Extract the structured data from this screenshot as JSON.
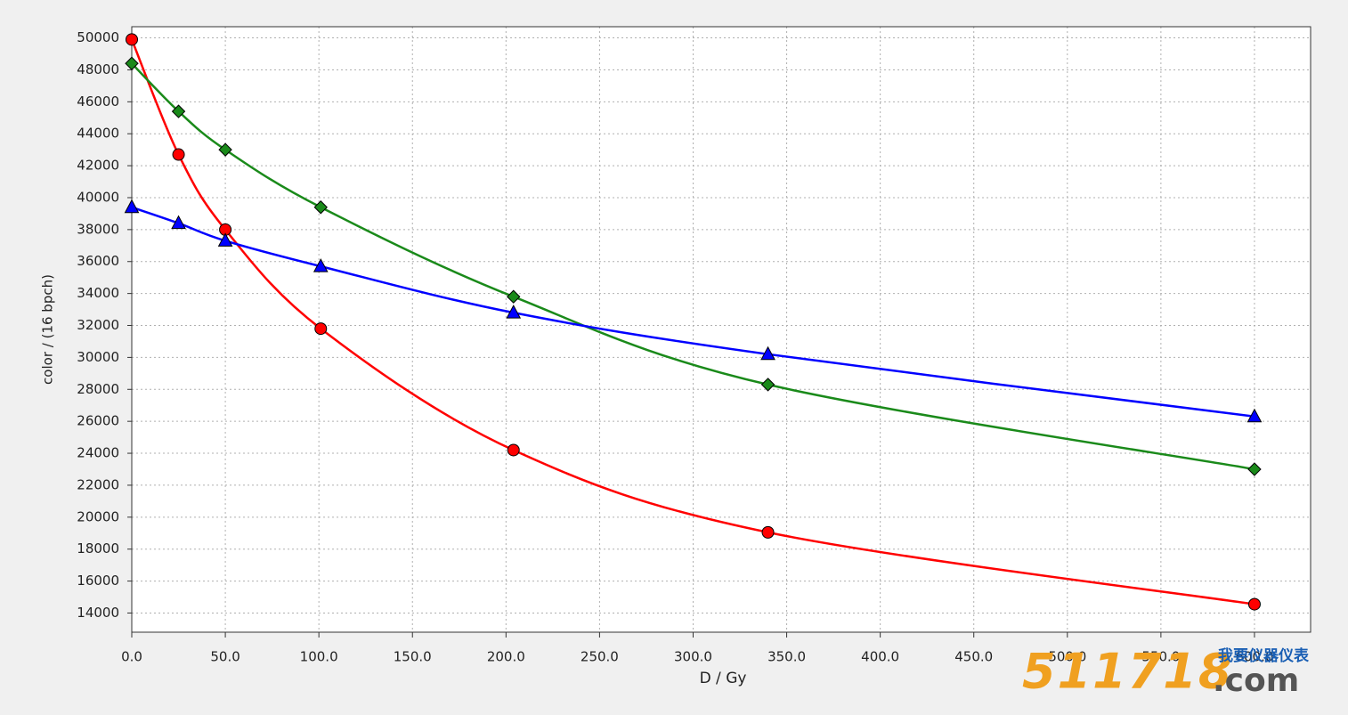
{
  "chart_data": {
    "type": "line",
    "x_label": "D / Gy",
    "y_label": "color / (16 bpch)",
    "x": [
      0,
      25,
      50,
      101,
      204,
      340,
      600
    ],
    "series": [
      {
        "color": "#ff0000",
        "marker": "circle",
        "values": [
          49900,
          42700,
          38000,
          31800,
          24200,
          19050,
          14550
        ]
      },
      {
        "color": "#1a8a1a",
        "marker": "diamond",
        "values": [
          48400,
          45400,
          43000,
          39400,
          33800,
          28300,
          23000
        ]
      },
      {
        "color": "#0000ff",
        "marker": "triangle",
        "values": [
          39400,
          38400,
          37300,
          35700,
          32800,
          30200,
          26300
        ]
      }
    ],
    "xlim": [
      0,
      630
    ],
    "ylim": [
      12800,
      50700
    ],
    "xticks": [
      {
        "value": 0,
        "label": "0.0"
      },
      {
        "value": 50,
        "label": "50.0"
      },
      {
        "value": 100,
        "label": "100.0"
      },
      {
        "value": 150,
        "label": "150.0"
      },
      {
        "value": 200,
        "label": "200.0"
      },
      {
        "value": 250,
        "label": "250.0"
      },
      {
        "value": 300,
        "label": "300.0"
      },
      {
        "value": 350,
        "label": "350.0"
      },
      {
        "value": 400,
        "label": "400.0"
      },
      {
        "value": 450,
        "label": "450.0"
      },
      {
        "value": 500,
        "label": "500.0"
      },
      {
        "value": 550,
        "label": "550.0"
      },
      {
        "value": 600,
        "label": "600.0"
      }
    ],
    "yticks": [
      14000,
      16000,
      18000,
      20000,
      22000,
      24000,
      26000,
      28000,
      30000,
      32000,
      34000,
      36000,
      38000,
      40000,
      42000,
      44000,
      46000,
      48000,
      50000
    ],
    "grid": true
  },
  "watermark": {
    "number": "511718",
    "domain": ".com",
    "tagline": "我要仪器仪表"
  }
}
